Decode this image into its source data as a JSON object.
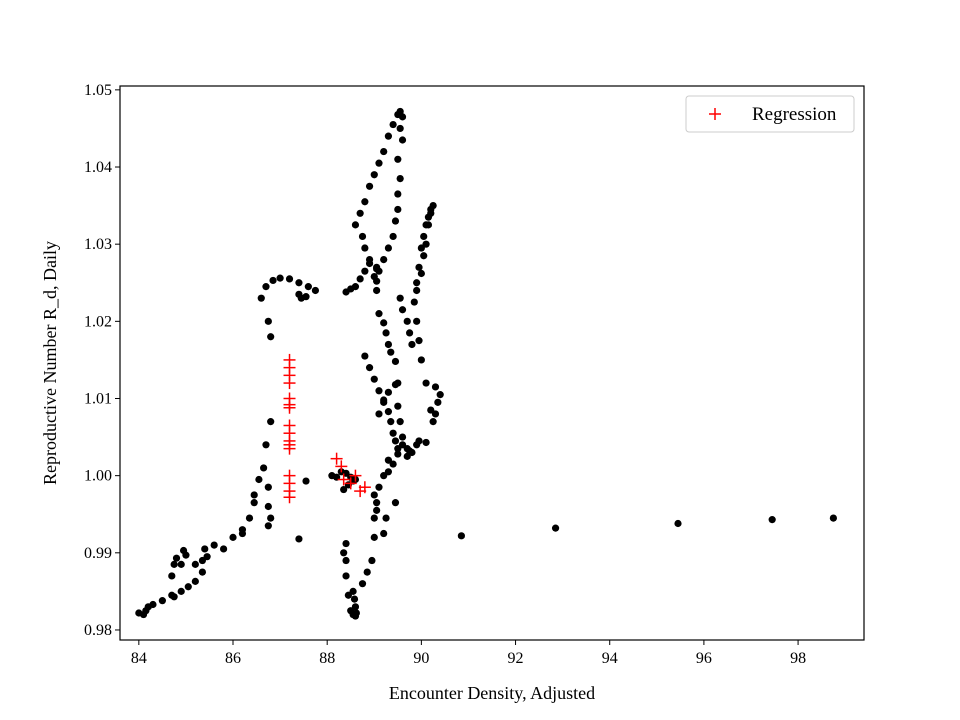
{
  "chart_data": {
    "type": "scatter",
    "xlabel": "Encounter Density, Adjusted",
    "ylabel": "Reproductive Number R_d, Daily",
    "xlim": [
      83.6,
      99.4
    ],
    "ylim": [
      0.9787,
      1.0505
    ],
    "x_ticks": [
      84,
      86,
      88,
      90,
      92,
      94,
      96,
      98
    ],
    "y_ticks": [
      0.98,
      0.99,
      1.0,
      1.01,
      1.02,
      1.03,
      1.04,
      1.05
    ],
    "x_tick_labels": [
      "84",
      "86",
      "88",
      "90",
      "92",
      "94",
      "96",
      "98"
    ],
    "y_tick_labels": [
      "0.98",
      "0.99",
      "1.00",
      "1.01",
      "1.02",
      "1.03",
      "1.04",
      "1.05"
    ],
    "grid": false,
    "legend": {
      "position": "top-right",
      "entries": [
        "Regression"
      ]
    },
    "colors": {
      "data": "#000000",
      "regression": "#ff0000"
    },
    "series": [
      {
        "marker": "dot",
        "color": "#000000",
        "points": [
          [
            84.0,
            0.9822
          ],
          [
            84.1,
            0.982
          ],
          [
            84.15,
            0.9825
          ],
          [
            84.2,
            0.983
          ],
          [
            84.3,
            0.9833
          ],
          [
            84.5,
            0.9838
          ],
          [
            84.7,
            0.9845
          ],
          [
            84.75,
            0.9843
          ],
          [
            84.9,
            0.985
          ],
          [
            85.05,
            0.9856
          ],
          [
            85.2,
            0.9863
          ],
          [
            85.35,
            0.9875
          ],
          [
            85.45,
            0.9895
          ],
          [
            85.6,
            0.991
          ],
          [
            85.8,
            0.9905
          ],
          [
            86.0,
            0.992
          ],
          [
            86.2,
            0.9925
          ],
          [
            86.35,
            0.9945
          ],
          [
            86.45,
            0.9975
          ],
          [
            86.55,
            0.9995
          ],
          [
            86.65,
            1.001
          ],
          [
            86.7,
            1.004
          ],
          [
            86.8,
            1.007
          ],
          [
            86.8,
            1.018
          ],
          [
            86.75,
            1.02
          ],
          [
            86.6,
            1.023
          ],
          [
            86.7,
            1.0245
          ],
          [
            86.85,
            1.0253
          ],
          [
            87.0,
            1.0256
          ],
          [
            87.2,
            1.0255
          ],
          [
            87.4,
            1.025
          ],
          [
            87.6,
            1.0245
          ],
          [
            87.75,
            1.024
          ],
          [
            87.55,
            1.0232
          ],
          [
            87.45,
            1.023
          ],
          [
            87.4,
            1.0235
          ],
          [
            84.7,
            0.987
          ],
          [
            84.75,
            0.9885
          ],
          [
            84.8,
            0.9893
          ],
          [
            84.9,
            0.9885
          ],
          [
            85.0,
            0.9897
          ],
          [
            84.95,
            0.9903
          ],
          [
            85.2,
            0.9885
          ],
          [
            85.35,
            0.989
          ],
          [
            85.4,
            0.9905
          ],
          [
            86.2,
            0.993
          ],
          [
            86.45,
            0.9965
          ],
          [
            86.75,
            0.9985
          ],
          [
            86.75,
            0.996
          ],
          [
            86.8,
            0.9945
          ],
          [
            86.75,
            0.9935
          ],
          [
            87.4,
            0.9918
          ],
          [
            87.55,
            0.9993
          ],
          [
            88.1,
            1.0
          ],
          [
            88.2,
            0.9998
          ],
          [
            88.3,
            1.0005
          ],
          [
            88.4,
            1.0003
          ],
          [
            88.5,
            0.9998
          ],
          [
            88.55,
            0.9993
          ],
          [
            88.6,
            0.9995
          ],
          [
            88.35,
            0.9982
          ],
          [
            88.45,
            0.9988
          ],
          [
            88.35,
            0.99
          ],
          [
            88.4,
            0.987
          ],
          [
            88.45,
            0.9845
          ],
          [
            88.5,
            0.9825
          ],
          [
            88.55,
            0.982
          ],
          [
            88.6,
            0.9818
          ],
          [
            88.62,
            0.9822
          ],
          [
            88.6,
            0.983
          ],
          [
            88.58,
            0.984
          ],
          [
            88.55,
            0.985
          ],
          [
            88.4,
            0.9912
          ],
          [
            88.4,
            0.989
          ],
          [
            88.75,
            0.986
          ],
          [
            88.85,
            0.9875
          ],
          [
            88.95,
            0.989
          ],
          [
            89.0,
            0.992
          ],
          [
            89.0,
            0.9945
          ],
          [
            89.05,
            0.9955
          ],
          [
            89.05,
            0.9965
          ],
          [
            89.0,
            0.9975
          ],
          [
            89.1,
            0.9985
          ],
          [
            89.2,
            1.0
          ],
          [
            89.3,
            1.0005
          ],
          [
            89.4,
            1.0015
          ],
          [
            89.5,
            1.0028
          ],
          [
            89.6,
            1.004
          ],
          [
            89.45,
            0.9965
          ],
          [
            89.25,
            0.9945
          ],
          [
            89.2,
            0.9925
          ],
          [
            88.4,
            1.0238
          ],
          [
            88.5,
            1.0242
          ],
          [
            88.6,
            1.0245
          ],
          [
            88.7,
            1.0255
          ],
          [
            88.8,
            1.0265
          ],
          [
            88.9,
            1.0275
          ],
          [
            89.05,
            1.027
          ],
          [
            89.05,
            1.0252
          ],
          [
            89.05,
            1.024
          ],
          [
            89.1,
            1.021
          ],
          [
            89.2,
            1.0198
          ],
          [
            89.25,
            1.0185
          ],
          [
            89.3,
            1.017
          ],
          [
            89.35,
            1.016
          ],
          [
            89.45,
            1.0148
          ],
          [
            89.5,
            1.012
          ],
          [
            89.5,
            1.009
          ],
          [
            89.55,
            1.007
          ],
          [
            89.6,
            1.005
          ],
          [
            89.7,
            1.0035
          ],
          [
            89.9,
            1.004
          ],
          [
            90.1,
            1.0043
          ],
          [
            89.95,
            1.0045
          ],
          [
            89.75,
            1.0032
          ],
          [
            88.8,
            1.0155
          ],
          [
            88.9,
            1.014
          ],
          [
            89.0,
            1.0125
          ],
          [
            89.1,
            1.011
          ],
          [
            89.2,
            1.0098
          ],
          [
            89.3,
            1.0083
          ],
          [
            89.35,
            1.007
          ],
          [
            89.4,
            1.0055
          ],
          [
            89.45,
            1.0045
          ],
          [
            89.5,
            1.0035
          ],
          [
            89.3,
            1.002
          ],
          [
            89.1,
            1.008
          ],
          [
            89.2,
            1.0095
          ],
          [
            89.3,
            1.0108
          ],
          [
            89.45,
            1.0118
          ],
          [
            88.6,
            1.0325
          ],
          [
            88.7,
            1.034
          ],
          [
            88.8,
            1.0355
          ],
          [
            88.9,
            1.0375
          ],
          [
            89.0,
            1.039
          ],
          [
            89.1,
            1.0405
          ],
          [
            89.2,
            1.042
          ],
          [
            89.3,
            1.044
          ],
          [
            89.4,
            1.0455
          ],
          [
            89.5,
            1.0468
          ],
          [
            89.55,
            1.0472
          ],
          [
            89.6,
            1.0465
          ],
          [
            89.55,
            1.045
          ],
          [
            89.6,
            1.0435
          ],
          [
            89.5,
            1.041
          ],
          [
            89.55,
            1.0385
          ],
          [
            89.5,
            1.0365
          ],
          [
            89.5,
            1.0345
          ],
          [
            89.45,
            1.033
          ],
          [
            89.4,
            1.031
          ],
          [
            89.3,
            1.0295
          ],
          [
            89.2,
            1.028
          ],
          [
            89.1,
            1.0265
          ],
          [
            89.0,
            1.0258
          ],
          [
            88.75,
            1.031
          ],
          [
            88.8,
            1.0295
          ],
          [
            88.9,
            1.028
          ],
          [
            89.05,
            1.0268
          ],
          [
            89.55,
            1.023
          ],
          [
            89.6,
            1.0215
          ],
          [
            89.7,
            1.02
          ],
          [
            89.75,
            1.0185
          ],
          [
            89.8,
            1.017
          ],
          [
            89.9,
            1.025
          ],
          [
            89.95,
            1.027
          ],
          [
            90.0,
            1.0295
          ],
          [
            90.05,
            1.031
          ],
          [
            90.1,
            1.0325
          ],
          [
            90.15,
            1.0335
          ],
          [
            90.2,
            1.0345
          ],
          [
            90.25,
            1.035
          ],
          [
            90.2,
            1.034
          ],
          [
            90.15,
            1.0325
          ],
          [
            90.1,
            1.03
          ],
          [
            90.05,
            1.0285
          ],
          [
            90.0,
            1.0262
          ],
          [
            89.9,
            1.024
          ],
          [
            89.85,
            1.0225
          ],
          [
            89.9,
            1.02
          ],
          [
            89.95,
            1.0175
          ],
          [
            90.0,
            1.015
          ],
          [
            90.1,
            1.012
          ],
          [
            90.2,
            1.0085
          ],
          [
            90.25,
            1.007
          ],
          [
            90.3,
            1.008
          ],
          [
            90.35,
            1.0095
          ],
          [
            90.4,
            1.0105
          ],
          [
            90.3,
            1.0115
          ],
          [
            89.7,
            1.0025
          ],
          [
            89.8,
            1.003
          ],
          [
            90.85,
            0.9922
          ],
          [
            92.85,
            0.9932
          ],
          [
            95.45,
            0.9938
          ],
          [
            97.45,
            0.9943
          ],
          [
            98.75,
            0.9945
          ]
        ]
      },
      {
        "name": "Regression",
        "marker": "plus",
        "color": "#ff0000",
        "points": [
          [
            87.2,
            1.015
          ],
          [
            87.2,
            1.014
          ],
          [
            87.2,
            1.013
          ],
          [
            87.2,
            1.012
          ],
          [
            87.2,
            1.01
          ],
          [
            87.2,
            1.0092
          ],
          [
            87.2,
            1.0088
          ],
          [
            87.2,
            1.0065
          ],
          [
            87.2,
            1.0055
          ],
          [
            87.2,
            1.0045
          ],
          [
            87.2,
            1.004
          ],
          [
            87.2,
            1.0035
          ],
          [
            87.2,
            1.0
          ],
          [
            87.2,
            0.999
          ],
          [
            87.2,
            0.998
          ],
          [
            87.2,
            0.9972
          ],
          [
            88.2,
            1.0022
          ],
          [
            88.3,
            1.0012
          ],
          [
            88.35,
            0.9995
          ],
          [
            88.5,
            0.999
          ],
          [
            88.6,
            1.0
          ],
          [
            88.7,
            0.998
          ],
          [
            88.8,
            0.9985
          ]
        ]
      }
    ]
  }
}
